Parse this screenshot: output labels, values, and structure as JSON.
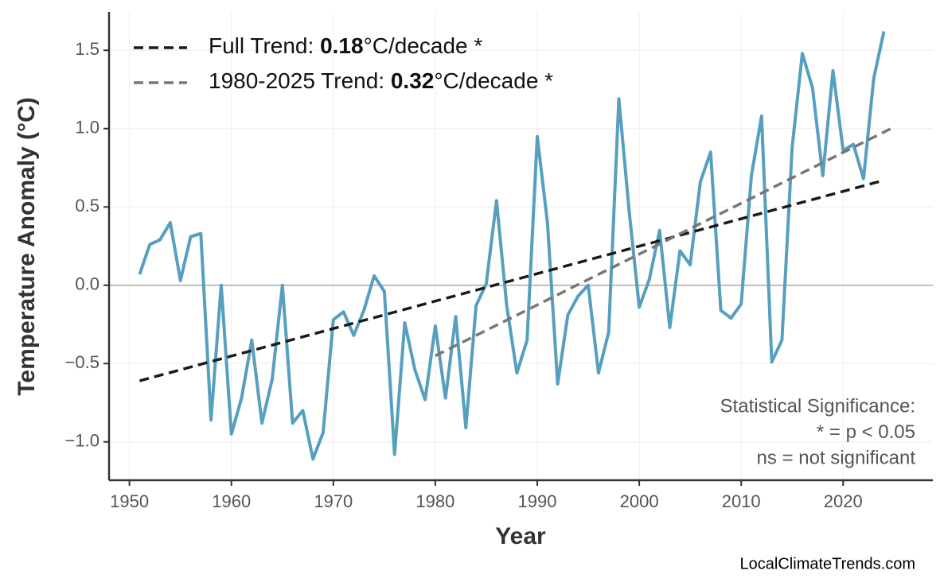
{
  "chart_data": {
    "type": "line",
    "xlabel": "Year",
    "ylabel": "Temperature Anomaly (°C)",
    "xlim": [
      1948,
      2028.8
    ],
    "ylim": [
      -1.245,
      1.745
    ],
    "xticks": [
      1950,
      1960,
      1970,
      1980,
      1990,
      2000,
      2010,
      2020
    ],
    "yticks": [
      {
        "value": -1.0,
        "label": "−1.0"
      },
      {
        "value": -0.5,
        "label": "−0.5"
      },
      {
        "value": 0.0,
        "label": "0.0"
      },
      0.5,
      {
        "value": 1.0,
        "label": "1.0"
      },
      1.5
    ],
    "grid": true,
    "hline": 0,
    "legend": "upper left",
    "series": [
      {
        "color": "#579fbe",
        "style": "solid",
        "x": [
          1951,
          1952,
          1953,
          1954,
          1955,
          1956,
          1957,
          1958,
          1959,
          1960,
          1961,
          1962,
          1963,
          1964,
          1965,
          1966,
          1967,
          1968,
          1969,
          1970,
          1971,
          1972,
          1973,
          1974,
          1975,
          1976,
          1977,
          1978,
          1979,
          1980,
          1981,
          1982,
          1983,
          1984,
          1985,
          1986,
          1987,
          1988,
          1989,
          1990,
          1991,
          1992,
          1993,
          1994,
          1995,
          1996,
          1997,
          1998,
          1999,
          2000,
          2001,
          2002,
          2003,
          2004,
          2005,
          2006,
          2007,
          2008,
          2009,
          2010,
          2011,
          2012,
          2013,
          2014,
          2015,
          2016,
          2017,
          2018,
          2019,
          2020,
          2021,
          2022,
          2023,
          2024
        ],
        "values": [
          0.07,
          0.26,
          0.29,
          0.4,
          0.03,
          0.31,
          0.33,
          -0.86,
          0.0,
          -0.95,
          -0.72,
          -0.35,
          -0.88,
          -0.6,
          0.0,
          -0.88,
          -0.8,
          -1.11,
          -0.94,
          -0.22,
          -0.17,
          -0.32,
          -0.16,
          0.06,
          -0.04,
          -1.08,
          -0.24,
          -0.54,
          -0.73,
          -0.26,
          -0.72,
          -0.2,
          -0.91,
          -0.13,
          0.01,
          0.54,
          -0.13,
          -0.56,
          -0.35,
          0.95,
          0.4,
          -0.63,
          -0.19,
          -0.07,
          0.0,
          -0.56,
          -0.3,
          1.19,
          0.48,
          -0.14,
          0.04,
          0.35,
          -0.27,
          0.22,
          0.13,
          0.66,
          0.85,
          -0.16,
          -0.21,
          -0.12,
          0.7,
          1.08,
          -0.49,
          -0.35,
          0.88,
          1.48,
          1.26,
          0.7,
          1.37,
          0.86,
          0.9,
          0.68,
          1.32,
          1.62
        ]
      },
      {
        "name": [
          "Full Trend: ",
          "0.18",
          "°C/decade *"
        ],
        "color": "#1a1a1a",
        "style": "dashed",
        "x": [
          1951,
          2024
        ],
        "values": [
          -0.61,
          0.67
        ]
      },
      {
        "name": [
          "1980-2025 Trend: ",
          "0.32",
          "°C/decade *"
        ],
        "color": "#777777",
        "style": "dashed",
        "x": [
          1980,
          2025
        ],
        "values": [
          -0.45,
          1.01
        ]
      }
    ],
    "annotation": [
      "Statistical Significance:",
      "* = p < 0.05",
      "ns = not significant"
    ],
    "source": "LocalClimateTrends.com"
  }
}
